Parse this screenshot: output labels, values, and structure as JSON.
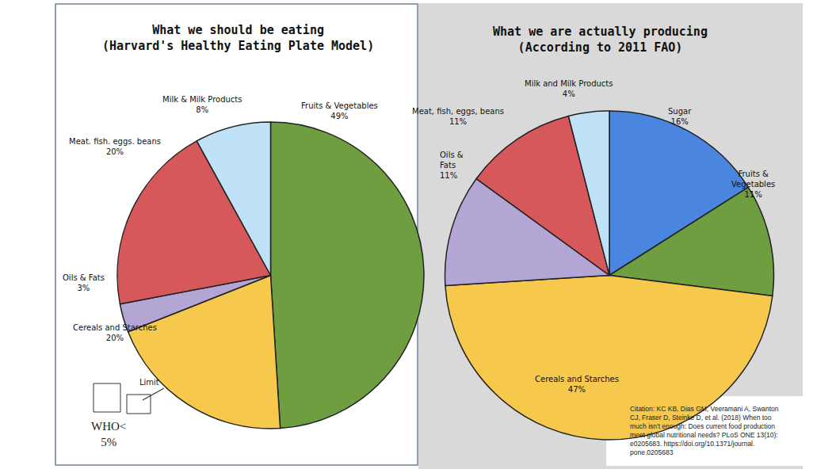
{
  "chart_data": [
    {
      "type": "pie",
      "title": "What we should be eating\n(Harvard's Healthy Eating Plate Model)",
      "categories": [
        "Fruits & Vegetables",
        "Cereals and Starches",
        "Oils & Fats",
        "Meat. fish. eggs. beans",
        "Milk & Milk Products"
      ],
      "values": [
        49,
        20,
        3,
        20,
        8
      ],
      "value_labels": [
        "49%",
        "20%",
        "3%",
        "20%",
        "8%"
      ],
      "colors": [
        "#6e9e3f",
        "#f6c84c",
        "#b3a6d4",
        "#d6585a",
        "#bfe2f6"
      ],
      "data_labels": true,
      "annotations": [
        "Limit",
        "WHO<\n5%"
      ]
    },
    {
      "type": "pie",
      "title": "What we are actually producing\n(According to 2011 FAO)",
      "categories": [
        "Sugar",
        "Fruits &\nVegetables",
        "Cereals and Starches",
        "Oils &\nFats",
        "Meat, fish, eggs, beans",
        "Milk and Milk Products"
      ],
      "values": [
        16,
        11,
        47,
        11,
        11,
        4
      ],
      "value_labels": [
        "16%",
        "11%",
        "47%",
        "11%",
        "11%",
        "4%"
      ],
      "colors": [
        "#4a86e0",
        "#6e9e3f",
        "#f6c84c",
        "#b3a6d4",
        "#d6585a",
        "#bfe2f6"
      ],
      "data_labels": true,
      "annotations": [
        "Citation: KC KB, Dias GM, Veeramani A, Swanton\nCJ, Fraser D, Steinke D, et al. (2018) When too\nmuch isn't enough: Does current food production\nmeet global nutritional needs? PLoS ONE 13(10):\ne0205683. https://doi.org/10.1371/journal.\npone.0205683"
      ]
    }
  ]
}
